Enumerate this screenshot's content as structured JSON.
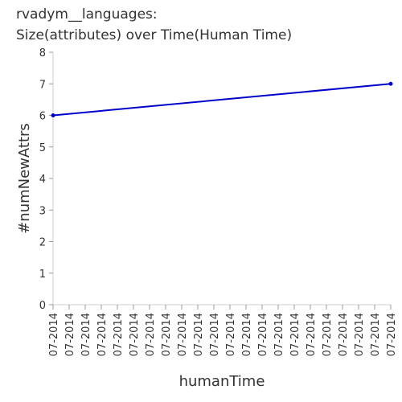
{
  "chart_data": {
    "type": "line",
    "title": "rvadym__languages:",
    "subtitle": "Size(attributes) over Time(Human Time)",
    "xlabel": "humanTime",
    "ylabel": "#numNewAttrs",
    "ylim": [
      0,
      8
    ],
    "y_ticks": [
      "0",
      "1",
      "2",
      "3",
      "4",
      "5",
      "6",
      "7",
      "8"
    ],
    "x_tick_labels": [
      "07-2014",
      "07-2014",
      "07-2014",
      "07-2014",
      "07-2014",
      "07-2014",
      "07-2014",
      "07-2014",
      "07-2014",
      "07-2014",
      "07-2014",
      "07-2014",
      "07-2014",
      "07-2014",
      "07-2014",
      "07-2014",
      "07-2014",
      "07-2014",
      "07-2014",
      "07-2014",
      "07-2014",
      "07-2014"
    ],
    "grid": false,
    "series": [
      {
        "x_index": [
          0,
          21
        ],
        "values": [
          6,
          7
        ],
        "color": "#0000cc"
      }
    ]
  }
}
